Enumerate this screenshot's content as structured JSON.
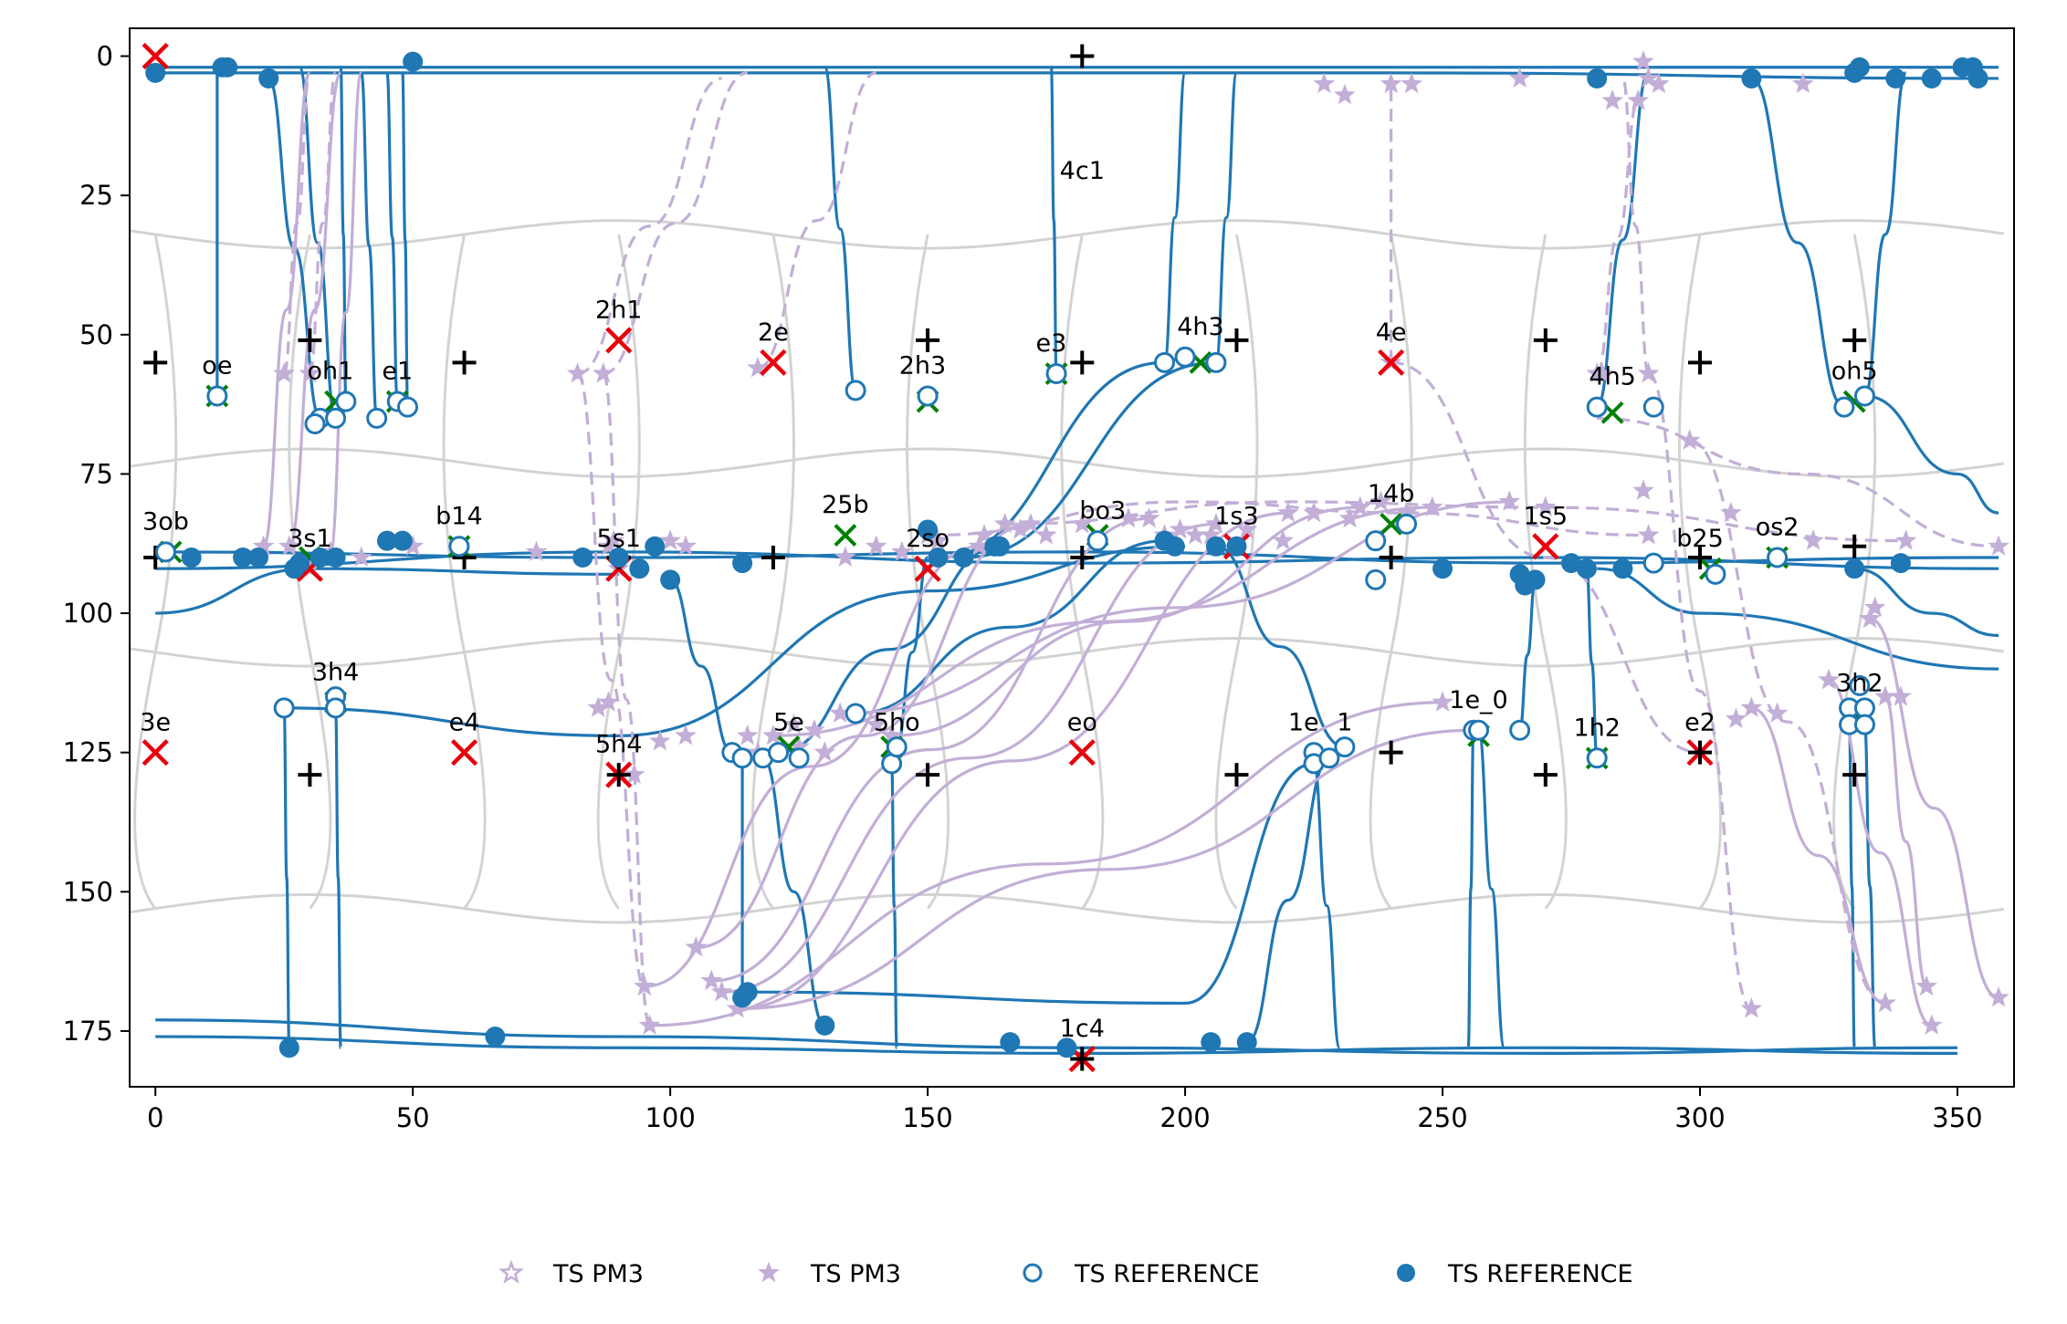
{
  "chart_data": {
    "type": "scatter",
    "title": "",
    "xlabel": "",
    "ylabel": "",
    "xlim": [
      -5,
      361
    ],
    "ylim": [
      185,
      -5
    ],
    "x_ticks": [
      0,
      50,
      100,
      150,
      200,
      250,
      300,
      350
    ],
    "y_ticks": [
      0,
      25,
      50,
      75,
      100,
      125,
      150,
      175
    ],
    "x_tick_labels": [
      "0",
      "50",
      "100",
      "150",
      "200",
      "250",
      "300",
      "350"
    ],
    "y_tick_labels": [
      "0",
      "25",
      "50",
      "75",
      "100",
      "125",
      "150",
      "175"
    ],
    "grid": false,
    "legend": {
      "placement": "bottom-center",
      "entries": [
        {
          "label": "TS PM3",
          "marker": "star-open",
          "color": "#c2aed6"
        },
        {
          "label": "TS PM3",
          "marker": "star-filled",
          "color": "#c2aed6"
        },
        {
          "label": "TS REFERENCE",
          "marker": "circle-open",
          "color": "#1f77b4"
        },
        {
          "label": "TS REFERENCE",
          "marker": "circle-filled",
          "color": "#1f77b4"
        }
      ]
    },
    "colors": {
      "reference": "#1f77b4",
      "pm3": "#c2aed6",
      "minima": "#e8000b",
      "pm3_minima": "#008000",
      "grid_lines": "#d3d3d3"
    },
    "red_minima": [
      [
        0,
        0
      ],
      [
        90,
        51
      ],
      [
        120,
        55
      ],
      [
        240,
        55
      ],
      [
        30,
        92
      ],
      [
        90,
        92
      ],
      [
        150,
        92
      ],
      [
        210,
        88
      ],
      [
        270,
        88
      ],
      [
        0,
        125
      ],
      [
        60,
        125
      ],
      [
        90,
        129
      ],
      [
        180,
        125
      ],
      [
        300,
        125
      ],
      [
        180,
        180
      ]
    ],
    "black_plus": [
      [
        180,
        0
      ],
      [
        0,
        55
      ],
      [
        30,
        51
      ],
      [
        60,
        55
      ],
      [
        150,
        51
      ],
      [
        180,
        55
      ],
      [
        210,
        51
      ],
      [
        270,
        51
      ],
      [
        300,
        55
      ],
      [
        330,
        51
      ],
      [
        0,
        90
      ],
      [
        60,
        90
      ],
      [
        90,
        90
      ],
      [
        120,
        90
      ],
      [
        180,
        90
      ],
      [
        240,
        90
      ],
      [
        300,
        90
      ],
      [
        330,
        88
      ],
      [
        30,
        129
      ],
      [
        90,
        129
      ],
      [
        150,
        129
      ],
      [
        210,
        129
      ],
      [
        240,
        125
      ],
      [
        270,
        129
      ],
      [
        330,
        129
      ],
      [
        180,
        180
      ],
      [
        300,
        125
      ]
    ],
    "green_minima": [
      [
        12,
        61
      ],
      [
        35,
        62
      ],
      [
        47,
        62
      ],
      [
        150,
        62
      ],
      [
        175,
        57
      ],
      [
        203,
        55
      ],
      [
        283,
        64
      ],
      [
        330,
        62
      ],
      [
        3,
        89
      ],
      [
        30,
        90
      ],
      [
        59,
        88
      ],
      [
        134,
        86
      ],
      [
        183,
        86
      ],
      [
        240,
        84
      ],
      [
        302,
        92
      ],
      [
        315,
        90
      ],
      [
        35,
        116
      ],
      [
        123,
        124
      ],
      [
        143,
        124
      ],
      [
        257,
        122
      ],
      [
        280,
        126
      ],
      [
        331,
        118
      ]
    ],
    "ts_reference_open": [
      [
        12,
        61
      ],
      [
        32,
        65
      ],
      [
        31,
        66
      ],
      [
        35,
        65
      ],
      [
        37,
        62
      ],
      [
        43,
        65
      ],
      [
        47,
        62
      ],
      [
        49,
        63
      ],
      [
        136,
        60
      ],
      [
        150,
        61
      ],
      [
        175,
        57
      ],
      [
        196,
        55
      ],
      [
        200,
        54
      ],
      [
        206,
        55
      ],
      [
        280,
        63
      ],
      [
        291,
        63
      ],
      [
        328,
        63
      ],
      [
        332,
        61
      ],
      [
        2,
        89
      ],
      [
        59,
        88
      ],
      [
        183,
        87
      ],
      [
        237,
        87
      ],
      [
        237,
        94
      ],
      [
        243,
        84
      ],
      [
        291,
        91
      ],
      [
        303,
        93
      ],
      [
        315,
        90
      ],
      [
        25,
        117
      ],
      [
        35,
        115
      ],
      [
        35,
        117
      ],
      [
        112,
        125
      ],
      [
        114,
        126
      ],
      [
        118,
        126
      ],
      [
        121,
        125
      ],
      [
        125,
        126
      ],
      [
        136,
        118
      ],
      [
        143,
        127
      ],
      [
        144,
        124
      ],
      [
        225,
        125
      ],
      [
        225,
        127
      ],
      [
        228,
        126
      ],
      [
        231,
        124
      ],
      [
        256,
        121
      ],
      [
        257,
        121
      ],
      [
        265,
        121
      ],
      [
        280,
        126
      ],
      [
        329,
        117
      ],
      [
        329,
        120
      ],
      [
        331,
        113
      ],
      [
        332,
        117
      ],
      [
        332,
        120
      ]
    ],
    "ts_reference_filled": [
      [
        0,
        3
      ],
      [
        13,
        2
      ],
      [
        14,
        2
      ],
      [
        22,
        4
      ],
      [
        50,
        1
      ],
      [
        7,
        90
      ],
      [
        17,
        90
      ],
      [
        20,
        90
      ],
      [
        27,
        92
      ],
      [
        28,
        91
      ],
      [
        32,
        90
      ],
      [
        35,
        90
      ],
      [
        45,
        87
      ],
      [
        48,
        87
      ],
      [
        83,
        90
      ],
      [
        90,
        90
      ],
      [
        94,
        92
      ],
      [
        97,
        88
      ],
      [
        100,
        94
      ],
      [
        114,
        91
      ],
      [
        150,
        85
      ],
      [
        152,
        90
      ],
      [
        157,
        90
      ],
      [
        163,
        88
      ],
      [
        164,
        88
      ],
      [
        196,
        87
      ],
      [
        198,
        88
      ],
      [
        206,
        88
      ],
      [
        210,
        88
      ],
      [
        250,
        92
      ],
      [
        265,
        93
      ],
      [
        266,
        95
      ],
      [
        268,
        94
      ],
      [
        275,
        91
      ],
      [
        278,
        92
      ],
      [
        285,
        92
      ],
      [
        330,
        92
      ],
      [
        339,
        91
      ],
      [
        280,
        4
      ],
      [
        310,
        4
      ],
      [
        330,
        3
      ],
      [
        331,
        2
      ],
      [
        338,
        4
      ],
      [
        345,
        4
      ],
      [
        351,
        2
      ],
      [
        353,
        2
      ],
      [
        354,
        4
      ],
      [
        114,
        169
      ],
      [
        115,
        168
      ],
      [
        130,
        174
      ],
      [
        166,
        177
      ],
      [
        177,
        178
      ],
      [
        205,
        177
      ],
      [
        212,
        177
      ],
      [
        66,
        176
      ],
      [
        26,
        178
      ]
    ],
    "ts_pm3_stars": [
      [
        25,
        57
      ],
      [
        30,
        57
      ],
      [
        82,
        57
      ],
      [
        87,
        57
      ],
      [
        117,
        56
      ],
      [
        240,
        55
      ],
      [
        280,
        57
      ],
      [
        290,
        57
      ],
      [
        281,
        57
      ],
      [
        298,
        69
      ],
      [
        306,
        82
      ],
      [
        322,
        87
      ],
      [
        340,
        87
      ],
      [
        358,
        88
      ],
      [
        21,
        88
      ],
      [
        26,
        88
      ],
      [
        34,
        89
      ],
      [
        40,
        90
      ],
      [
        50,
        88
      ],
      [
        74,
        89
      ],
      [
        88,
        88
      ],
      [
        89,
        87
      ],
      [
        100,
        87
      ],
      [
        103,
        88
      ],
      [
        134,
        90
      ],
      [
        140,
        88
      ],
      [
        145,
        89
      ],
      [
        152,
        87
      ],
      [
        161,
        86
      ],
      [
        170,
        84
      ],
      [
        193,
        83
      ],
      [
        206,
        84
      ],
      [
        220,
        82
      ],
      [
        225,
        82
      ],
      [
        234,
        81
      ],
      [
        238,
        80
      ],
      [
        243,
        82
      ],
      [
        248,
        81
      ],
      [
        263,
        80
      ],
      [
        270,
        81
      ],
      [
        289,
        78
      ],
      [
        290,
        86
      ],
      [
        30,
        92
      ],
      [
        90,
        92
      ],
      [
        120,
        122
      ],
      [
        124,
        120
      ],
      [
        128,
        121
      ],
      [
        133,
        118
      ],
      [
        140,
        120
      ],
      [
        143,
        122
      ],
      [
        150,
        86
      ],
      [
        160,
        88
      ],
      [
        165,
        84
      ],
      [
        168,
        85
      ],
      [
        173,
        86
      ],
      [
        180,
        84
      ],
      [
        189,
        83
      ],
      [
        196,
        86
      ],
      [
        199,
        85
      ],
      [
        202,
        86
      ],
      [
        205,
        86
      ],
      [
        212,
        85
      ],
      [
        219,
        87
      ],
      [
        232,
        83
      ],
      [
        93,
        129
      ],
      [
        98,
        123
      ],
      [
        103,
        122
      ],
      [
        115,
        122
      ],
      [
        117,
        125
      ],
      [
        125,
        124
      ],
      [
        130,
        125
      ],
      [
        86,
        117
      ],
      [
        95,
        167
      ],
      [
        105,
        160
      ],
      [
        108,
        166
      ],
      [
        110,
        168
      ],
      [
        113,
        171
      ],
      [
        96,
        174
      ],
      [
        88,
        116
      ],
      [
        307,
        119
      ],
      [
        310,
        117
      ],
      [
        315,
        118
      ],
      [
        325,
        112
      ],
      [
        333,
        101
      ],
      [
        334,
        99
      ],
      [
        336,
        115
      ],
      [
        339,
        115
      ],
      [
        336,
        170
      ],
      [
        344,
        167
      ],
      [
        345,
        174
      ],
      [
        358,
        169
      ],
      [
        310,
        171
      ],
      [
        289,
        1
      ],
      [
        227,
        5
      ],
      [
        240,
        5
      ],
      [
        244,
        5
      ],
      [
        265,
        4
      ],
      [
        250,
        116
      ],
      [
        231,
        7
      ],
      [
        288,
        8
      ],
      [
        283,
        8
      ],
      [
        290,
        4
      ],
      [
        292,
        5
      ],
      [
        320,
        5
      ]
    ]
  },
  "conformer_labels": [
    {
      "text": "4c1",
      "x": 180,
      "y": 22
    },
    {
      "text": "oe",
      "x": 12,
      "y": 57
    },
    {
      "text": "oh1",
      "x": 34,
      "y": 58
    },
    {
      "text": "e1",
      "x": 47,
      "y": 58
    },
    {
      "text": "2h1",
      "x": 90,
      "y": 47
    },
    {
      "text": "2e",
      "x": 120,
      "y": 51
    },
    {
      "text": "2h3",
      "x": 149,
      "y": 57
    },
    {
      "text": "e3",
      "x": 174,
      "y": 53
    },
    {
      "text": "4h3",
      "x": 203,
      "y": 50
    },
    {
      "text": "4e",
      "x": 240,
      "y": 51
    },
    {
      "text": "4h5",
      "x": 283,
      "y": 59
    },
    {
      "text": "oh5",
      "x": 330,
      "y": 58
    },
    {
      "text": "3ob",
      "x": 2,
      "y": 85
    },
    {
      "text": "3s1",
      "x": 30,
      "y": 88
    },
    {
      "text": "b14",
      "x": 59,
      "y": 84
    },
    {
      "text": "5s1",
      "x": 90,
      "y": 88
    },
    {
      "text": "25b",
      "x": 134,
      "y": 82
    },
    {
      "text": "2so",
      "x": 150,
      "y": 88
    },
    {
      "text": "bo3",
      "x": 184,
      "y": 83
    },
    {
      "text": "1s3",
      "x": 210,
      "y": 84
    },
    {
      "text": "14b",
      "x": 240,
      "y": 80
    },
    {
      "text": "1s5",
      "x": 270,
      "y": 84
    },
    {
      "text": "b25",
      "x": 300,
      "y": 88
    },
    {
      "text": "os2",
      "x": 315,
      "y": 86
    },
    {
      "text": "3h4",
      "x": 35,
      "y": 112
    },
    {
      "text": "3e",
      "x": 0,
      "y": 121
    },
    {
      "text": "e4",
      "x": 60,
      "y": 121
    },
    {
      "text": "5h4",
      "x": 90,
      "y": 125
    },
    {
      "text": "5e",
      "x": 123,
      "y": 121
    },
    {
      "text": "5ho",
      "x": 144,
      "y": 121
    },
    {
      "text": "eo",
      "x": 180,
      "y": 121
    },
    {
      "text": "1e",
      "x": 223,
      "y": 121
    },
    {
      "text": "1",
      "x": 231,
      "y": 121
    },
    {
      "text": "1e_0",
      "x": 257,
      "y": 117
    },
    {
      "text": "1h2",
      "x": 280,
      "y": 122
    },
    {
      "text": "e2",
      "x": 300,
      "y": 121
    },
    {
      "text": "3h2",
      "x": 331,
      "y": 114
    },
    {
      "text": "1c4",
      "x": 180,
      "y": 176
    }
  ]
}
